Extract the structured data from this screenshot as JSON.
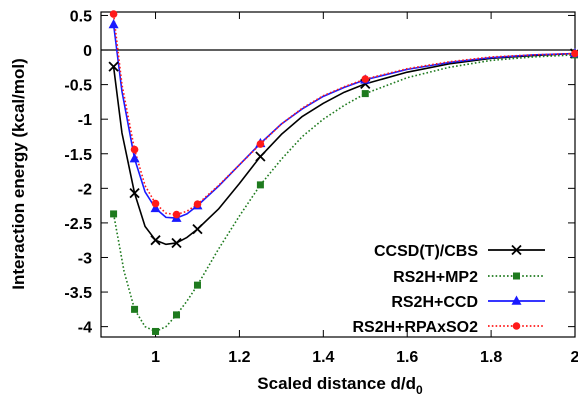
{
  "chart_data": {
    "type": "line",
    "xlabel": "Scaled distance d/d",
    "xlabel_subscript": "0",
    "ylabel": "Interaction energy (kcal/mol)",
    "xlim": [
      0.87,
      2.0
    ],
    "ylim": [
      -4.15,
      0.55
    ],
    "x_ticks": [
      1,
      1.2,
      1.4,
      1.6,
      1.8,
      2
    ],
    "x_tick_labels": [
      "1",
      "1.2",
      "1.4",
      "1.6",
      "1.8",
      "2"
    ],
    "y_ticks": [
      0.5,
      0,
      -0.5,
      -1,
      -1.5,
      -2,
      -2.5,
      -3,
      -3.5,
      -4
    ],
    "y_tick_labels": [
      "0.5",
      "0",
      "-0.5",
      "-1",
      "-1.5",
      "-2",
      "-2.5",
      "-3",
      "-3.5",
      "-4"
    ],
    "zero_line": true,
    "grid": false,
    "legend_position": "bottom-right",
    "x": [
      0.9,
      0.95,
      1.0,
      1.05,
      1.1,
      1.25,
      1.5,
      2.0
    ],
    "series": [
      {
        "name": "CCSD(T)/CBS",
        "color": "#000000",
        "line": "solid",
        "marker": "x",
        "values": [
          -0.24,
          -2.07,
          -2.75,
          -2.79,
          -2.59,
          -1.54,
          -0.49,
          -0.05
        ],
        "curve": [
          [
            0.9,
            -0.24
          ],
          [
            0.92,
            -1.2
          ],
          [
            0.95,
            -2.07
          ],
          [
            0.975,
            -2.55
          ],
          [
            1.0,
            -2.75
          ],
          [
            1.025,
            -2.81
          ],
          [
            1.05,
            -2.79
          ],
          [
            1.075,
            -2.71
          ],
          [
            1.1,
            -2.59
          ],
          [
            1.15,
            -2.3
          ],
          [
            1.2,
            -1.93
          ],
          [
            1.25,
            -1.54
          ],
          [
            1.3,
            -1.22
          ],
          [
            1.35,
            -0.96
          ],
          [
            1.4,
            -0.77
          ],
          [
            1.45,
            -0.61
          ],
          [
            1.5,
            -0.49
          ],
          [
            1.6,
            -0.32
          ],
          [
            1.7,
            -0.2
          ],
          [
            1.8,
            -0.12
          ],
          [
            1.9,
            -0.08
          ],
          [
            2.0,
            -0.05
          ]
        ]
      },
      {
        "name": "RS2H+MP2",
        "color": "#1e7a1e",
        "line": "dotted",
        "marker": "square",
        "values": [
          -2.37,
          -3.75,
          -4.07,
          -3.83,
          -3.4,
          -1.95,
          -0.63,
          -0.07
        ],
        "curve": [
          [
            0.9,
            -2.37
          ],
          [
            0.925,
            -3.2
          ],
          [
            0.95,
            -3.75
          ],
          [
            0.975,
            -4.0
          ],
          [
            1.0,
            -4.07
          ],
          [
            1.025,
            -4.0
          ],
          [
            1.05,
            -3.83
          ],
          [
            1.075,
            -3.63
          ],
          [
            1.1,
            -3.4
          ],
          [
            1.15,
            -2.88
          ],
          [
            1.2,
            -2.4
          ],
          [
            1.25,
            -1.95
          ],
          [
            1.3,
            -1.58
          ],
          [
            1.35,
            -1.25
          ],
          [
            1.4,
            -1.0
          ],
          [
            1.45,
            -0.8
          ],
          [
            1.5,
            -0.63
          ],
          [
            1.6,
            -0.4
          ],
          [
            1.7,
            -0.25
          ],
          [
            1.8,
            -0.15
          ],
          [
            1.9,
            -0.1
          ],
          [
            2.0,
            -0.07
          ]
        ]
      },
      {
        "name": "RS2H+CCD",
        "color": "#1a1aff",
        "line": "solid",
        "marker": "triangle",
        "values": [
          0.37,
          -1.57,
          -2.29,
          -2.43,
          -2.25,
          -1.35,
          -0.43,
          -0.05
        ],
        "curve": [
          [
            0.9,
            0.37
          ],
          [
            0.92,
            -0.6
          ],
          [
            0.95,
            -1.57
          ],
          [
            0.975,
            -2.05
          ],
          [
            1.0,
            -2.29
          ],
          [
            1.025,
            -2.42
          ],
          [
            1.05,
            -2.43
          ],
          [
            1.075,
            -2.37
          ],
          [
            1.1,
            -2.25
          ],
          [
            1.15,
            -1.97
          ],
          [
            1.2,
            -1.66
          ],
          [
            1.25,
            -1.35
          ],
          [
            1.3,
            -1.07
          ],
          [
            1.35,
            -0.85
          ],
          [
            1.4,
            -0.67
          ],
          [
            1.45,
            -0.54
          ],
          [
            1.5,
            -0.43
          ],
          [
            1.6,
            -0.28
          ],
          [
            1.7,
            -0.18
          ],
          [
            1.8,
            -0.11
          ],
          [
            1.9,
            -0.07
          ],
          [
            2.0,
            -0.05
          ]
        ]
      },
      {
        "name": "RS2H+RPAxSO2",
        "color": "#ff1a1a",
        "line": "dotted",
        "marker": "circle",
        "values": [
          0.52,
          -1.44,
          -2.22,
          -2.38,
          -2.23,
          -1.36,
          -0.42,
          -0.05
        ],
        "curve": [
          [
            0.9,
            0.52
          ],
          [
            0.92,
            -0.5
          ],
          [
            0.95,
            -1.44
          ],
          [
            0.975,
            -1.96
          ],
          [
            1.0,
            -2.22
          ],
          [
            1.025,
            -2.36
          ],
          [
            1.05,
            -2.38
          ],
          [
            1.075,
            -2.33
          ],
          [
            1.1,
            -2.23
          ],
          [
            1.15,
            -1.96
          ],
          [
            1.2,
            -1.66
          ],
          [
            1.25,
            -1.36
          ],
          [
            1.3,
            -1.07
          ],
          [
            1.35,
            -0.84
          ],
          [
            1.4,
            -0.66
          ],
          [
            1.45,
            -0.53
          ],
          [
            1.5,
            -0.42
          ],
          [
            1.6,
            -0.27
          ],
          [
            1.7,
            -0.17
          ],
          [
            1.8,
            -0.1
          ],
          [
            1.9,
            -0.07
          ],
          [
            2.0,
            -0.05
          ]
        ]
      }
    ]
  }
}
